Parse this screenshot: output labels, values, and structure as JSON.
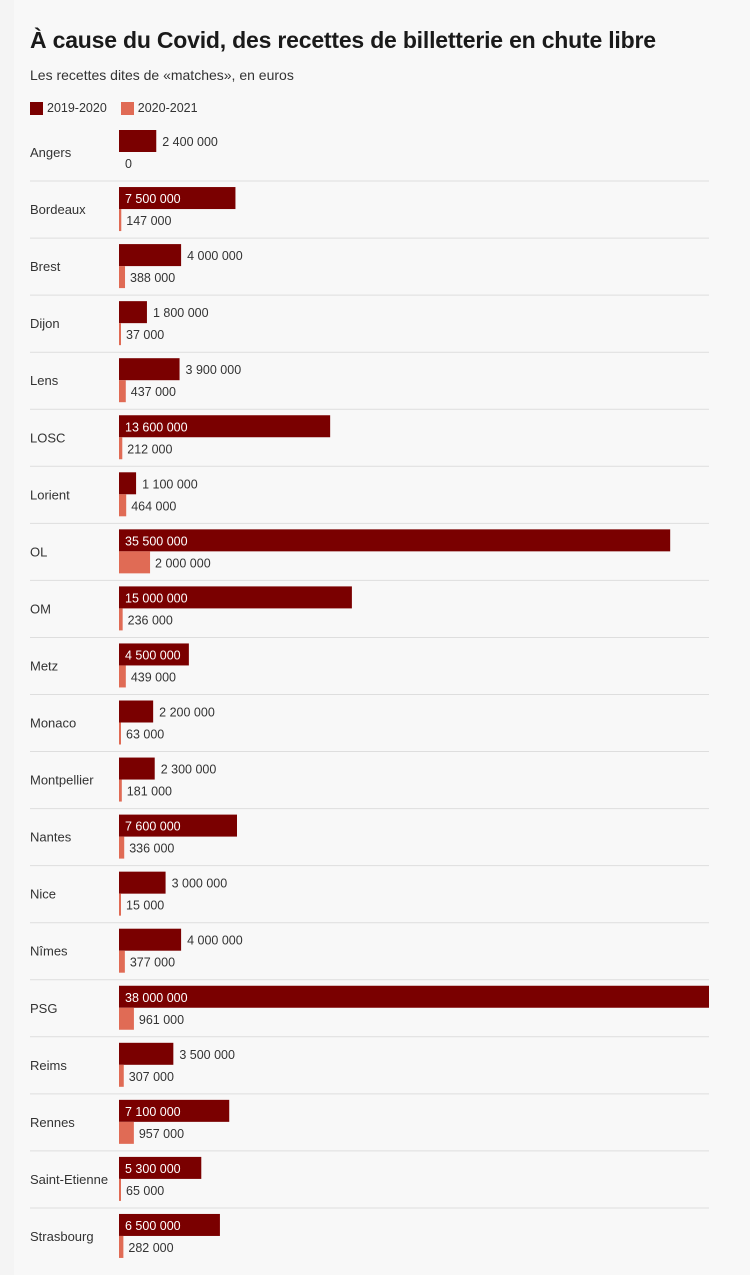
{
  "header": {
    "title": "À cause du Covid, des recettes de billetterie en chute libre",
    "subtitle": "Les recettes dites de «matches», en euros"
  },
  "colors": {
    "series_2019": "#7a0000",
    "series_2020": "#e06b55",
    "divider": "#dedede",
    "label_dark": "#333333"
  },
  "chart_data": {
    "type": "bar",
    "orientation": "horizontal",
    "title": "À cause du Covid, des recettes de billetterie en chute libre",
    "subtitle": "Les recettes dites de «matches», en euros",
    "legend_position": "top-left",
    "grid": false,
    "xlim": [
      0,
      38000000
    ],
    "categories": [
      "Angers",
      "Bordeaux",
      "Brest",
      "Dijon",
      "Lens",
      "LOSC",
      "Lorient",
      "OL",
      "OM",
      "Metz",
      "Monaco",
      "Montpellier",
      "Nantes",
      "Nice",
      "Nîmes",
      "PSG",
      "Reims",
      "Rennes",
      "Saint-Etienne",
      "Strasbourg"
    ],
    "series": [
      {
        "name": "2019-2020",
        "values": [
          2400000,
          7500000,
          4000000,
          1800000,
          3900000,
          13600000,
          1100000,
          35500000,
          15000000,
          4500000,
          2200000,
          2300000,
          7600000,
          3000000,
          4000000,
          38000000,
          3500000,
          7100000,
          5300000,
          6500000
        ],
        "labels": [
          "2 400 000",
          "7 500 000",
          "4 000 000",
          "1 800 000",
          "3 900 000",
          "13 600 000",
          "1 100 000",
          "35 500 000",
          "15 000 000",
          "4 500 000",
          "2 200 000",
          "2 300 000",
          "7 600 000",
          "3 000 000",
          "4 000 000",
          "38 000 000",
          "3 500 000",
          "7 100 000",
          "5 300 000",
          "6 500 000"
        ]
      },
      {
        "name": "2020-2021",
        "values": [
          0,
          147000,
          388000,
          37000,
          437000,
          212000,
          464000,
          2000000,
          236000,
          439000,
          63000,
          181000,
          336000,
          15000,
          377000,
          961000,
          307000,
          957000,
          65000,
          282000
        ],
        "labels": [
          "0",
          "147 000",
          "388 000",
          "37 000",
          "437 000",
          "212 000",
          "464 000",
          "2 000 000",
          "236 000",
          "439 000",
          "63 000",
          "181 000",
          "336 000",
          "15 000",
          "377 000",
          "961 000",
          "307 000",
          "957 000",
          "65 000",
          "282 000"
        ]
      }
    ]
  }
}
